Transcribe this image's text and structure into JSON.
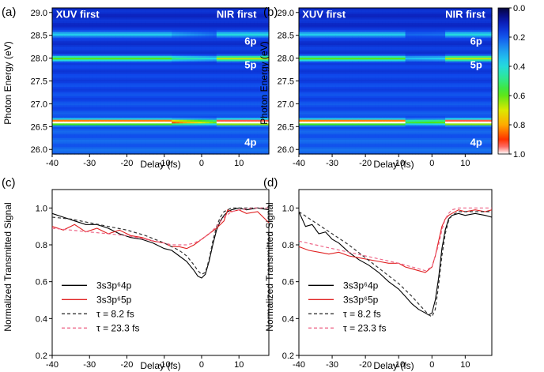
{
  "chart_data": [
    {
      "type": "heatmap",
      "panel_label": "(a)",
      "xlabel": "Delay (fs)",
      "ylabel": "Photon Energy (eV)",
      "xlim": [
        -40,
        18
      ],
      "ylim": [
        25.9,
        29.1
      ],
      "x_ticks": [
        "-40",
        "-30",
        "-20",
        "-10",
        "0",
        "10"
      ],
      "x_tick_values": [
        -40,
        -30,
        -20,
        -10,
        0,
        10
      ],
      "y_ticks": [
        "26.0",
        "26.5",
        "27.0",
        "27.5",
        "28.0",
        "28.5",
        "29.0"
      ],
      "y_tick_values": [
        26.0,
        26.5,
        27.0,
        27.5,
        28.0,
        28.5,
        29.0
      ],
      "annotations": [
        {
          "text": "XUV first",
          "x": -39,
          "y": 28.88
        },
        {
          "text": "NIR first",
          "x": 4,
          "y": 28.88
        },
        {
          "text": "6p",
          "x": 11.5,
          "y": 28.3
        },
        {
          "text": "5p",
          "x": 11.5,
          "y": 27.78
        },
        {
          "text": "4p",
          "x": 11.5,
          "y": 26.08
        }
      ],
      "lines": [
        {
          "name": "4p",
          "energy": 26.61,
          "strength_before": 0.85,
          "strength_after": 0.98
        },
        {
          "name": "5p",
          "energy": 28.0,
          "strength_before": 0.42,
          "strength_after": 0.5
        },
        {
          "name": "6p",
          "energy": 28.53,
          "strength_before": 0.25,
          "strength_after": 0.28
        }
      ]
    },
    {
      "type": "heatmap",
      "panel_label": "(b)",
      "xlabel": "Delay (fs)",
      "ylabel": "Photon Energy (eV)",
      "xlim": [
        -40,
        18
      ],
      "ylim": [
        25.9,
        29.1
      ],
      "x_ticks": [
        "-40",
        "-30",
        "-20",
        "-10",
        "0",
        "10"
      ],
      "x_tick_values": [
        -40,
        -30,
        -20,
        -10,
        0,
        10
      ],
      "y_ticks": [
        "26.0",
        "26.5",
        "27.0",
        "27.5",
        "28.0",
        "28.5",
        "29.0"
      ],
      "y_tick_values": [
        26.0,
        26.5,
        27.0,
        27.5,
        28.0,
        28.5,
        29.0
      ],
      "annotations": [
        {
          "text": "XUV first",
          "x": -39,
          "y": 28.88
        },
        {
          "text": "NIR first",
          "x": 4,
          "y": 28.88
        },
        {
          "text": "6p",
          "x": 11.5,
          "y": 28.3
        },
        {
          "text": "5p",
          "x": 11.5,
          "y": 27.78
        },
        {
          "text": "4p",
          "x": 11.5,
          "y": 26.08
        }
      ],
      "colorbar": {
        "range": [
          0.0,
          1.0
        ],
        "ticks": [
          "0.0",
          "0.2",
          "0.4",
          "0.6",
          "0.8",
          "1.0"
        ],
        "tick_values": [
          0.0,
          0.2,
          0.4,
          0.6,
          0.8,
          1.0
        ],
        "colors": [
          "#000000",
          "#0000aa",
          "#0a2ee8",
          "#1e8cf0",
          "#22d8f0",
          "#2ee890",
          "#44e800",
          "#d8e800",
          "#ffb000",
          "#ff3000",
          "#ff6060",
          "#ffffff"
        ]
      },
      "lines": [
        {
          "name": "4p",
          "energy": 26.61,
          "strength_before": 0.85,
          "strength_after": 0.98
        },
        {
          "name": "5p",
          "energy": 28.0,
          "strength_before": 0.42,
          "strength_after": 0.5
        },
        {
          "name": "6p",
          "energy": 28.53,
          "strength_before": 0.25,
          "strength_after": 0.28
        }
      ]
    },
    {
      "type": "line",
      "panel_label": "(c)",
      "xlabel": "Delay (fs)",
      "ylabel": "Normalized Transmitted Signal",
      "xlim": [
        -40,
        18
      ],
      "ylim": [
        0.2,
        1.1
      ],
      "x_ticks": [
        "-40",
        "-30",
        "-20",
        "-10",
        "0",
        "10"
      ],
      "x_tick_values": [
        -40,
        -30,
        -20,
        -10,
        0,
        10
      ],
      "y_ticks": [
        "0.2",
        "0.4",
        "0.6",
        "0.8",
        "1.0"
      ],
      "y_tick_values": [
        0.2,
        0.4,
        0.6,
        0.8,
        1.0
      ],
      "legend_position": "bottom-left",
      "series": [
        {
          "name": "3s3p⁶4p",
          "color": "#000000",
          "dash": "solid",
          "x": [
            -40,
            -37,
            -34,
            -31,
            -28,
            -25,
            -22,
            -19,
            -16,
            -13,
            -10,
            -8,
            -6,
            -4,
            -2,
            -1,
            0,
            1,
            2,
            3,
            4,
            5,
            6,
            7,
            8,
            10,
            12,
            15,
            18
          ],
          "y": [
            0.97,
            0.95,
            0.93,
            0.91,
            0.91,
            0.89,
            0.86,
            0.84,
            0.83,
            0.81,
            0.78,
            0.77,
            0.74,
            0.71,
            0.66,
            0.63,
            0.62,
            0.64,
            0.71,
            0.8,
            0.88,
            0.93,
            0.96,
            0.98,
            0.99,
            1.0,
            0.99,
            1.0,
            0.99
          ]
        },
        {
          "name": "3s3p⁶5p",
          "color": "#e02020",
          "dash": "solid",
          "x": [
            -40,
            -37,
            -34,
            -31,
            -28,
            -25,
            -22,
            -19,
            -16,
            -13,
            -10,
            -8,
            -6,
            -4,
            -2,
            0,
            2,
            4,
            6,
            7,
            8,
            10,
            12,
            15,
            18
          ],
          "y": [
            0.9,
            0.88,
            0.91,
            0.87,
            0.89,
            0.86,
            0.88,
            0.85,
            0.84,
            0.82,
            0.81,
            0.79,
            0.79,
            0.78,
            0.8,
            0.83,
            0.86,
            0.89,
            0.93,
            0.99,
            0.98,
            0.99,
            0.97,
            0.98,
            0.92
          ]
        },
        {
          "name": "τ = 8.2 fs",
          "color": "#333333",
          "dash": "dashed",
          "x": [
            -40,
            -35,
            -30,
            -25,
            -20,
            -15,
            -10,
            -6,
            -4,
            -2,
            -1,
            0,
            1,
            2,
            3,
            4,
            5,
            6,
            8,
            10,
            14,
            18
          ],
          "y": [
            0.95,
            0.94,
            0.92,
            0.9,
            0.88,
            0.85,
            0.81,
            0.77,
            0.74,
            0.69,
            0.66,
            0.64,
            0.65,
            0.72,
            0.82,
            0.9,
            0.95,
            0.98,
            1.0,
            1.0,
            1.0,
            1.0
          ]
        },
        {
          "name": "τ = 23.3 fs",
          "color": "#ee6688",
          "dash": "dashed",
          "x": [
            -40,
            -35,
            -30,
            -25,
            -20,
            -15,
            -10,
            -8,
            -6,
            -4,
            -2,
            0,
            2,
            4,
            6,
            8,
            10,
            14,
            18
          ],
          "y": [
            0.89,
            0.88,
            0.87,
            0.86,
            0.85,
            0.83,
            0.81,
            0.8,
            0.8,
            0.8,
            0.81,
            0.83,
            0.86,
            0.9,
            0.95,
            0.98,
            0.99,
            1.0,
            1.0
          ]
        }
      ]
    },
    {
      "type": "line",
      "panel_label": "(d)",
      "xlabel": "Delay (fs)",
      "ylabel": "Normalized Transmitted Signal",
      "xlim": [
        -40,
        18
      ],
      "ylim": [
        0.2,
        1.1
      ],
      "x_ticks": [
        "-40",
        "-30",
        "-20",
        "-10",
        "0",
        "10"
      ],
      "x_tick_values": [
        -40,
        -30,
        -20,
        -10,
        0,
        10
      ],
      "y_ticks": [
        "0.2",
        "0.4",
        "0.6",
        "0.8",
        "1.0"
      ],
      "y_tick_values": [
        0.2,
        0.4,
        0.6,
        0.8,
        1.0
      ],
      "legend_position": "bottom-left",
      "series": [
        {
          "name": "3s3p⁶4p",
          "color": "#000000",
          "dash": "solid",
          "x": [
            -40,
            -38,
            -36,
            -34,
            -32,
            -30,
            -28,
            -25,
            -22,
            -19,
            -16,
            -13,
            -10,
            -8,
            -6,
            -4,
            -2,
            -1,
            0,
            1,
            2,
            3,
            4,
            5,
            6,
            8,
            10,
            13,
            16,
            18
          ],
          "y": [
            0.98,
            0.9,
            0.91,
            0.86,
            0.87,
            0.83,
            0.81,
            0.76,
            0.72,
            0.69,
            0.65,
            0.6,
            0.56,
            0.52,
            0.48,
            0.45,
            0.43,
            0.42,
            0.43,
            0.5,
            0.62,
            0.78,
            0.88,
            0.94,
            0.96,
            0.97,
            0.96,
            0.97,
            0.96,
            0.95
          ]
        },
        {
          "name": "3s3p⁶5p",
          "color": "#e02020",
          "dash": "solid",
          "x": [
            -40,
            -37,
            -34,
            -31,
            -28,
            -25,
            -22,
            -19,
            -16,
            -13,
            -10,
            -8,
            -6,
            -4,
            -2,
            0,
            1,
            2,
            3,
            4,
            5,
            6,
            8,
            10,
            13,
            16,
            18
          ],
          "y": [
            0.79,
            0.77,
            0.76,
            0.75,
            0.76,
            0.74,
            0.73,
            0.72,
            0.71,
            0.7,
            0.7,
            0.68,
            0.67,
            0.66,
            0.65,
            0.68,
            0.74,
            0.82,
            0.9,
            0.94,
            0.96,
            0.97,
            0.99,
            0.98,
            0.99,
            0.98,
            0.99
          ]
        },
        {
          "name": "τ = 8.2 fs",
          "color": "#333333",
          "dash": "dashed",
          "x": [
            -40,
            -35,
            -30,
            -25,
            -20,
            -15,
            -10,
            -6,
            -4,
            -2,
            -1,
            0,
            1,
            2,
            3,
            4,
            5,
            6,
            8,
            10,
            14,
            18
          ],
          "y": [
            0.98,
            0.92,
            0.86,
            0.8,
            0.73,
            0.66,
            0.59,
            0.52,
            0.48,
            0.44,
            0.42,
            0.41,
            0.45,
            0.58,
            0.74,
            0.86,
            0.93,
            0.96,
            0.98,
            0.98,
            0.98,
            0.98
          ]
        },
        {
          "name": "τ = 23.3 fs",
          "color": "#ee6688",
          "dash": "dashed",
          "x": [
            -40,
            -35,
            -30,
            -25,
            -20,
            -15,
            -10,
            -6,
            -4,
            -2,
            0,
            2,
            3,
            4,
            5,
            6,
            8,
            10,
            14,
            18
          ],
          "y": [
            0.82,
            0.8,
            0.78,
            0.76,
            0.74,
            0.72,
            0.7,
            0.68,
            0.67,
            0.66,
            0.68,
            0.8,
            0.88,
            0.94,
            0.97,
            0.99,
            1.0,
            1.0,
            1.0,
            1.0
          ]
        }
      ]
    }
  ]
}
